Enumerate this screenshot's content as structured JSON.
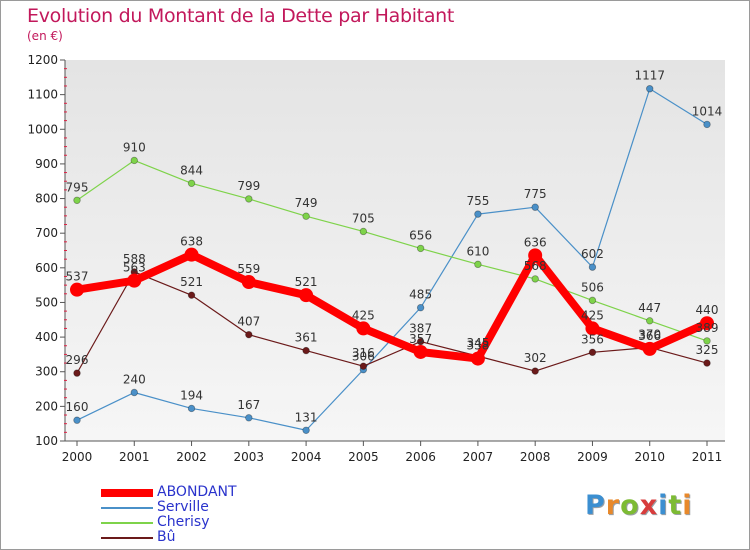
{
  "header": {
    "title": "Evolution du Montant de la Dette par Habitant",
    "subtitle": "(en €)"
  },
  "chart_data": {
    "type": "line",
    "title": "Evolution du Montant de la Dette par Habitant",
    "subtitle": "(en €)",
    "xlabel": "",
    "ylabel": "",
    "categories": [
      "2000",
      "2001",
      "2002",
      "2003",
      "2004",
      "2005",
      "2006",
      "2007",
      "2008",
      "2009",
      "2010",
      "2011"
    ],
    "ylim": [
      100,
      1200
    ],
    "yticks": [
      100,
      200,
      300,
      400,
      500,
      600,
      700,
      800,
      900,
      1000,
      1100,
      1200
    ],
    "grid": false,
    "legend_position": "bottom-left",
    "series": [
      {
        "name": "ABONDANT",
        "color": "#ff0000",
        "values": [
          537,
          563,
          638,
          559,
          521,
          425,
          357,
          338,
          636,
          425,
          366,
          440
        ]
      },
      {
        "name": "Serville",
        "color": "#4a90c8",
        "values": [
          160,
          240,
          194,
          167,
          131,
          306,
          485,
          755,
          775,
          602,
          1117,
          1014
        ]
      },
      {
        "name": "Cherisy",
        "color": "#7ed34a",
        "values": [
          795,
          910,
          844,
          799,
          749,
          705,
          656,
          610,
          568,
          506,
          447,
          389
        ]
      },
      {
        "name": "Bû",
        "color": "#6b1a1a",
        "values": [
          296,
          588,
          521,
          407,
          361,
          316,
          387,
          345,
          302,
          356,
          370,
          325
        ]
      }
    ]
  },
  "logo": {
    "letters": [
      "P",
      "r",
      "o",
      "x",
      "i",
      "t",
      "i"
    ],
    "colors": [
      "#3b8fd1",
      "#e8892b",
      "#7dbb34",
      "#d83c3c",
      "#3b8fd1",
      "#7dbb34",
      "#e8892b"
    ]
  }
}
